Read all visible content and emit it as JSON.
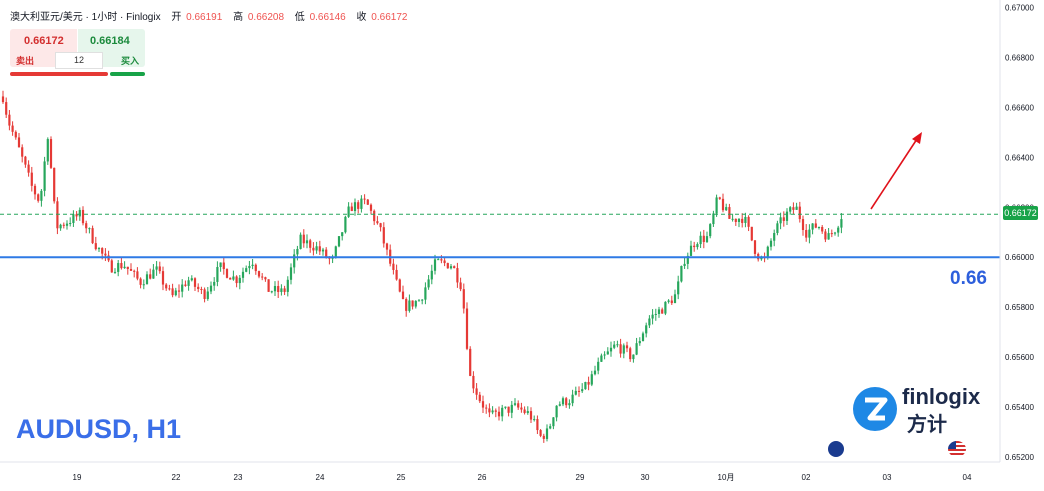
{
  "header": {
    "symbol": "澳大利亚元/美元 · 1小时 · Finlogix",
    "open_label": "开",
    "open": "0.66191",
    "high_label": "高",
    "high": "0.66208",
    "low_label": "低",
    "low": "0.66146",
    "close_label": "收",
    "close": "0.66172"
  },
  "trade_panel": {
    "sell_price": "0.66172",
    "buy_price": "0.66184",
    "sell_label": "卖出",
    "buy_label": "买入",
    "quantity": "12"
  },
  "overlay": {
    "pair_title": "AUDUSD, H1",
    "level_label": "0.66",
    "current_price_tag": "0.66172",
    "logo_text": "finlogix",
    "logo_cn": "方计"
  },
  "colors": {
    "up": "#26a65b",
    "down": "#e53935",
    "support_line": "#2f7ae5",
    "current_price_line": "#26a65b",
    "arrow": "#e0121b",
    "title": "#3a6ee8"
  },
  "icons": [
    "finlogix-logo-icon",
    "australia-flag-icon",
    "usa-flag-icon"
  ],
  "chart_data": {
    "type": "candlestick",
    "timeframe": "1 hour",
    "x_tick_labels": [
      "19",
      "22",
      "23",
      "24",
      "25",
      "26",
      "29",
      "30",
      "10月",
      "02",
      "03",
      "04"
    ],
    "y_tick_labels": [
      "0.67000",
      "0.66800",
      "0.66600",
      "0.66400",
      "0.66200",
      "0.66000",
      "0.65800",
      "0.65600",
      "0.65400",
      "0.65200"
    ],
    "ylim": [
      0.6518,
      0.6703
    ],
    "horizontal_levels": [
      {
        "value": 0.66,
        "style": "solid",
        "color": "#2f7ae5"
      },
      {
        "value": 0.66172,
        "style": "dashed",
        "color": "#26a65b"
      }
    ],
    "arrow": {
      "direction": "up",
      "color": "#e0121b"
    },
    "anchors": [
      [
        0,
        0.667
      ],
      [
        8,
        0.6655
      ],
      [
        20,
        0.6642
      ],
      [
        32,
        0.6628
      ],
      [
        40,
        0.6622
      ],
      [
        48,
        0.665
      ],
      [
        56,
        0.6612
      ],
      [
        66,
        0.6614
      ],
      [
        80,
        0.6617
      ],
      [
        96,
        0.6605
      ],
      [
        110,
        0.6596
      ],
      [
        124,
        0.6597
      ],
      [
        140,
        0.659
      ],
      [
        156,
        0.6595
      ],
      [
        172,
        0.6584
      ],
      [
        188,
        0.6591
      ],
      [
        204,
        0.6585
      ],
      [
        220,
        0.6596
      ],
      [
        236,
        0.6591
      ],
      [
        252,
        0.6599
      ],
      [
        268,
        0.6587
      ],
      [
        284,
        0.6586
      ],
      [
        300,
        0.6607
      ],
      [
        316,
        0.6604
      ],
      [
        332,
        0.6598
      ],
      [
        350,
        0.662
      ],
      [
        366,
        0.6622
      ],
      [
        380,
        0.6611
      ],
      [
        392,
        0.6595
      ],
      [
        404,
        0.658
      ],
      [
        420,
        0.6583
      ],
      [
        436,
        0.6598
      ],
      [
        452,
        0.6597
      ],
      [
        462,
        0.6588
      ],
      [
        470,
        0.6552
      ],
      [
        480,
        0.6543
      ],
      [
        490,
        0.6536
      ],
      [
        500,
        0.6538
      ],
      [
        516,
        0.654
      ],
      [
        530,
        0.6537
      ],
      [
        540,
        0.6528
      ],
      [
        548,
        0.653
      ],
      [
        556,
        0.6541
      ],
      [
        570,
        0.6543
      ],
      [
        586,
        0.6548
      ],
      [
        600,
        0.6558
      ],
      [
        616,
        0.6565
      ],
      [
        632,
        0.656
      ],
      [
        648,
        0.6575
      ],
      [
        664,
        0.658
      ],
      [
        676,
        0.6585
      ],
      [
        684,
        0.6599
      ],
      [
        696,
        0.6607
      ],
      [
        708,
        0.6608
      ],
      [
        718,
        0.6624
      ],
      [
        730,
        0.6615
      ],
      [
        744,
        0.6616
      ],
      [
        756,
        0.6602
      ],
      [
        764,
        0.6598
      ],
      [
        774,
        0.661
      ],
      [
        786,
        0.6617
      ],
      [
        796,
        0.662
      ],
      [
        806,
        0.661
      ],
      [
        818,
        0.6613
      ],
      [
        828,
        0.6608
      ],
      [
        836,
        0.6612
      ],
      [
        842,
        0.66172
      ]
    ]
  }
}
